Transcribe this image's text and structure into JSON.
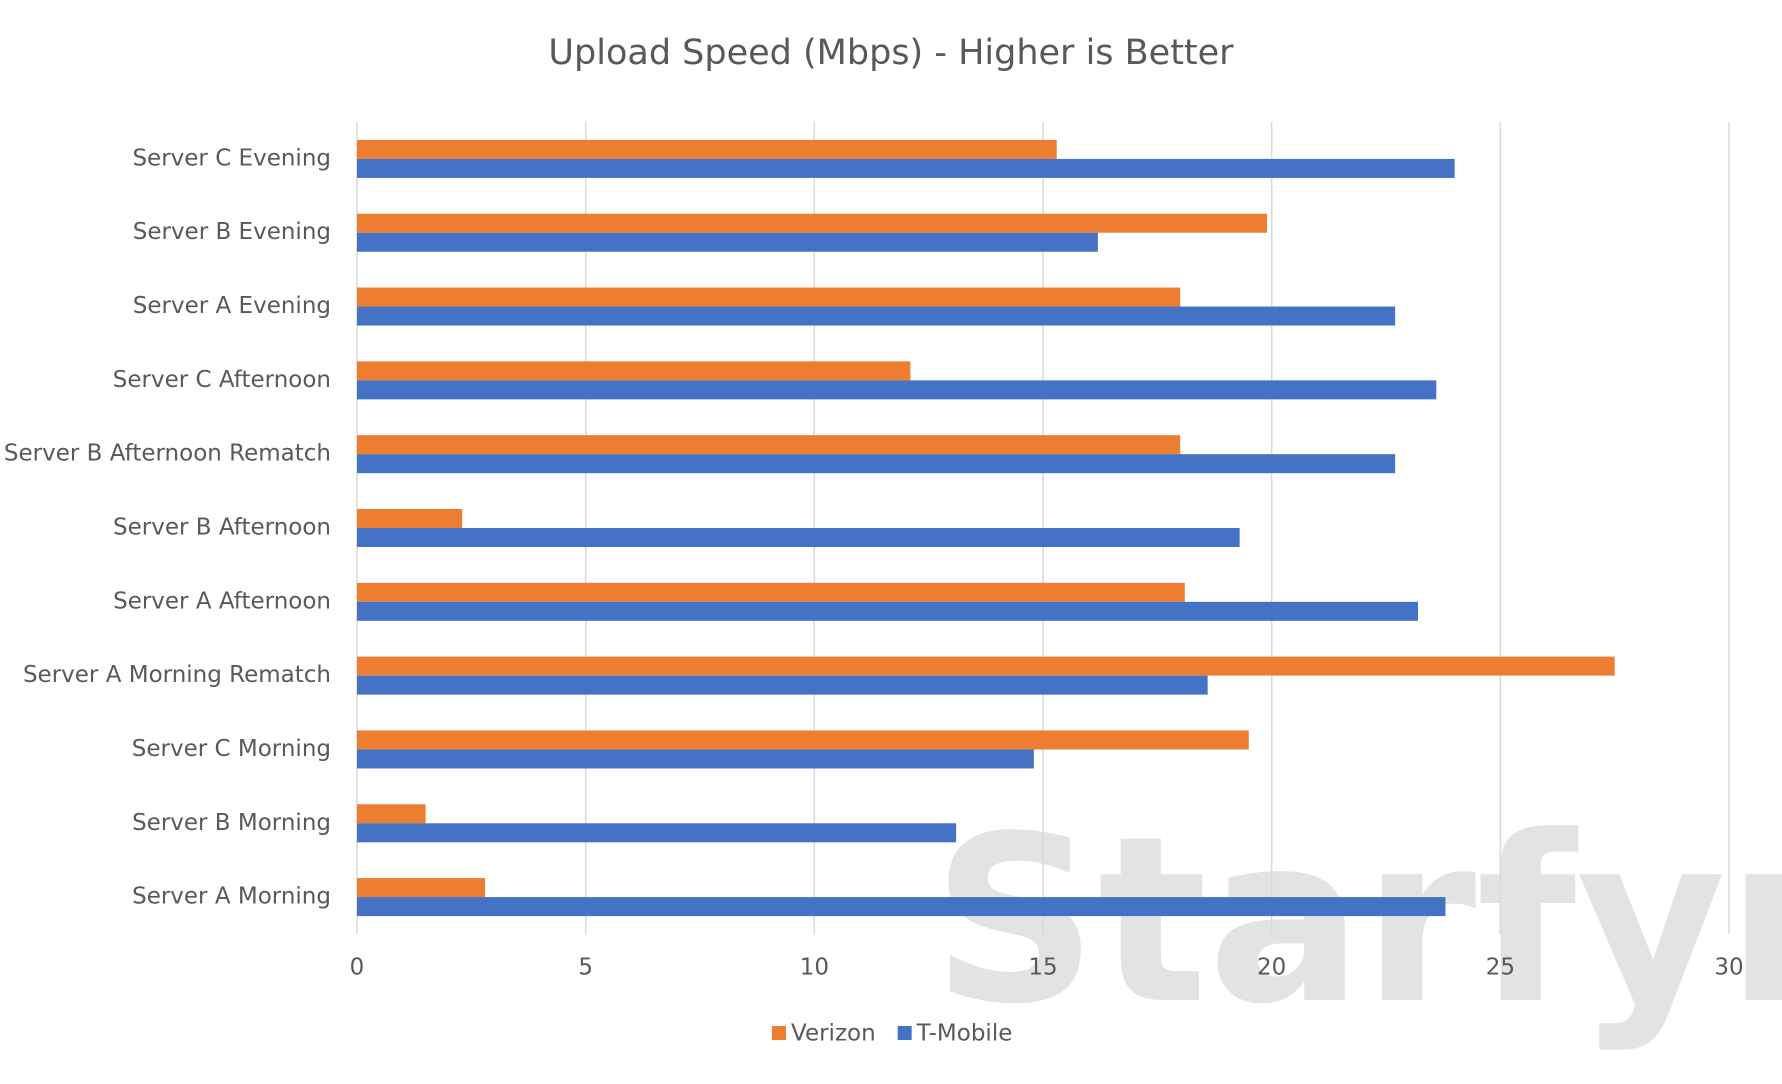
{
  "chart_data": {
    "type": "bar",
    "orientation": "horizontal",
    "title": "Upload Speed (Mbps) - Higher is Better",
    "watermark": "Starfyre",
    "categories": [
      "Server C Evening",
      "Server B Evening",
      "Server A Evening",
      "Server C Afternoon",
      "Server B Afternoon Rematch",
      "Server B Afternoon",
      "Server A Afternoon",
      "Server A Morning Rematch",
      "Server C Morning",
      "Server B Morning",
      "Server A Morning"
    ],
    "series": [
      {
        "name": "Verizon",
        "color": "#ed7d31",
        "values": [
          15.3,
          19.9,
          18.0,
          12.1,
          18.0,
          2.3,
          18.1,
          27.5,
          19.5,
          1.5,
          2.8
        ]
      },
      {
        "name": "T-Mobile",
        "color": "#4472c4",
        "values": [
          24.0,
          16.2,
          22.7,
          23.6,
          22.7,
          19.3,
          23.2,
          18.6,
          14.8,
          13.1,
          23.8
        ]
      }
    ],
    "xlim": [
      0,
      30
    ],
    "xticks": [
      0,
      5,
      10,
      15,
      20,
      25,
      30
    ],
    "grid": true,
    "legend": "bottom"
  }
}
